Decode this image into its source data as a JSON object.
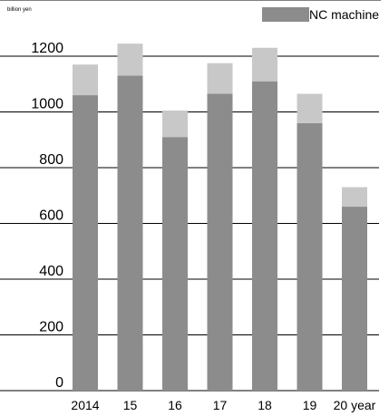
{
  "chart_data": {
    "type": "bar",
    "stacked": true,
    "unit_label": "billion yen",
    "categories": [
      "2014",
      "15",
      "16",
      "17",
      "18",
      "19",
      "20 year"
    ],
    "series": [
      {
        "name": "NC machine",
        "color": "#8c8c8c",
        "values": [
          1060,
          1130,
          910,
          1065,
          1110,
          960,
          660
        ]
      },
      {
        "color": "#c8c8c8",
        "values": [
          110,
          115,
          95,
          110,
          120,
          105,
          70
        ]
      }
    ],
    "yticks": [
      "0",
      "200",
      "400",
      "600",
      "800",
      "1000",
      "1200"
    ],
    "ylim": [
      0,
      1200
    ],
    "grid": true,
    "legend": "top-right"
  }
}
